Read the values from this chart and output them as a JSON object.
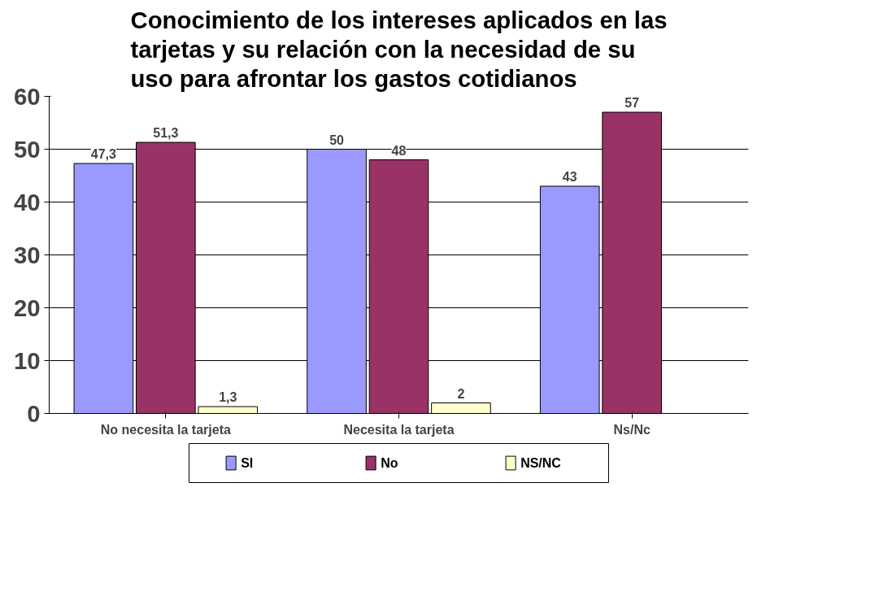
{
  "chart_data": {
    "type": "bar",
    "title": "Conocimiento de los intereses aplicados en las\ntarjetas y su relación con la necesidad de su\nuso para afrontar los gastos cotidianos",
    "categories": [
      "No necesita la tarjeta",
      "Necesita la tarjeta",
      "Ns/Nc"
    ],
    "series": [
      {
        "name": "SI",
        "color": "#9999ff",
        "values": [
          47.3,
          50,
          43
        ],
        "value_labels": [
          "47,3",
          "50",
          "43"
        ]
      },
      {
        "name": "No",
        "color": "#993366",
        "values": [
          51.3,
          48,
          57
        ],
        "value_labels": [
          "51,3",
          "48",
          "57"
        ]
      },
      {
        "name": "NS/NC",
        "color": "#ffffcc",
        "values": [
          1.3,
          2,
          null
        ],
        "value_labels": [
          "1,3",
          "2",
          null
        ]
      }
    ],
    "ylim": [
      0,
      60
    ],
    "yticks": [
      0,
      10,
      20,
      30,
      40,
      50,
      60
    ],
    "grid": "y",
    "legend": "bottom"
  }
}
